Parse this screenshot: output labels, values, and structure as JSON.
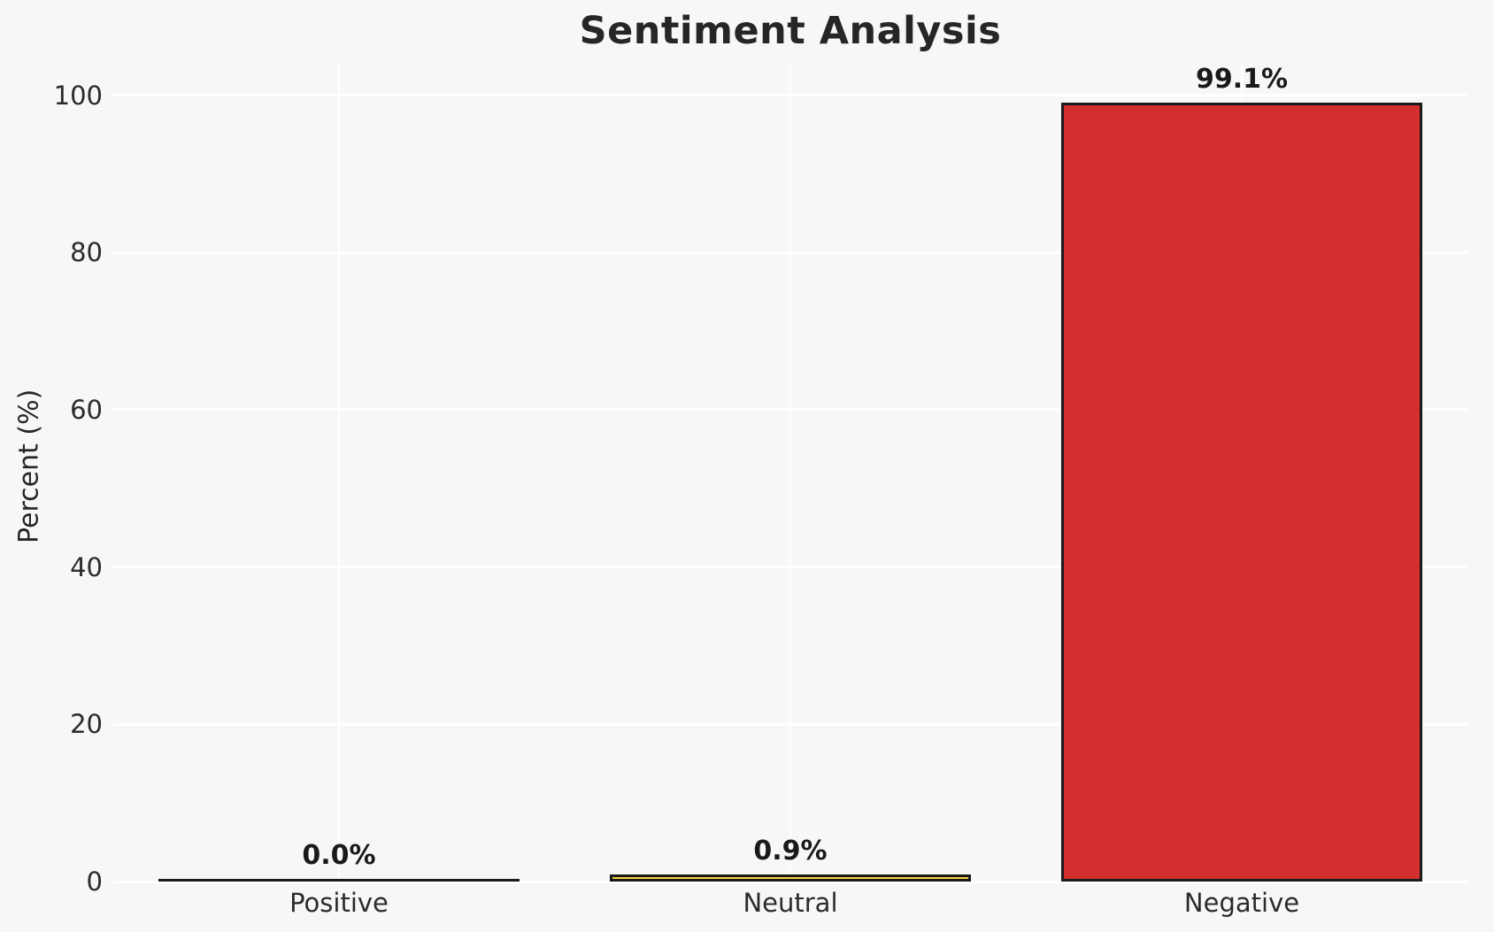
{
  "figure": {
    "background_color": "#f7f7f7",
    "text_color": "#262626"
  },
  "chart_data": {
    "type": "bar",
    "title": "Sentiment Analysis",
    "xlabel": "",
    "ylabel": "Percent (%)",
    "categories": [
      "Positive",
      "Neutral",
      "Negative"
    ],
    "values": [
      0.0,
      0.9,
      99.1
    ],
    "bar_labels": [
      "0.0%",
      "0.9%",
      "99.1%"
    ],
    "bar_colors": [
      "#1a1a1a",
      "#f5d33c",
      "#d32f2f"
    ],
    "bar_edge_color": "#1a1a1a",
    "yticks": [
      0,
      20,
      40,
      60,
      80,
      100
    ],
    "ylim": [
      0,
      104
    ],
    "grid": true,
    "grid_color": "#ffffff",
    "legend_position": "none"
  }
}
